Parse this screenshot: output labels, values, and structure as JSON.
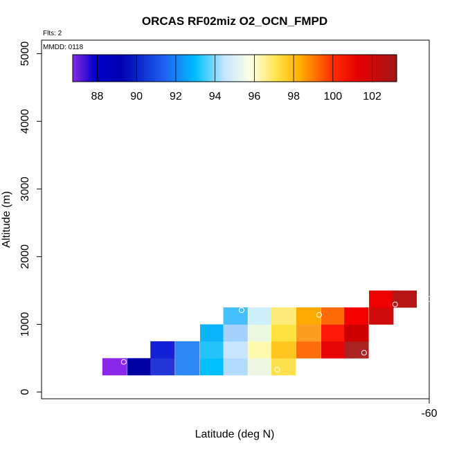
{
  "chart_data": {
    "type": "heatmap",
    "title": "ORCAS RF02miz O2_OCN_FMPD",
    "annotations": {
      "flights": "Flts: 2",
      "date": "MMDD: 0118"
    },
    "xlabel": "Latitude (deg N)",
    "ylabel": "Altitude (m)",
    "x_ticks": [
      "-60"
    ],
    "y_ticks": [
      0,
      1000,
      2000,
      3000,
      4000,
      5000
    ],
    "xlim": [
      -62.5,
      -60.0
    ],
    "ylim": [
      -100,
      5200
    ],
    "colorbar": {
      "min": 86.75,
      "max": 103.25,
      "tick_values": [
        88,
        90,
        92,
        94,
        96,
        98,
        100,
        102
      ],
      "tick_labels": [
        "88",
        "90",
        "92",
        "94",
        "96",
        "98",
        "100",
        "102"
      ]
    },
    "cell_size": {
      "lat": 0.156,
      "alt": 250
    },
    "cells": [
      {
        "lat": -62.03,
        "alt": 375,
        "value": 87.2,
        "color": "#8b27e8"
      },
      {
        "lat": -61.87,
        "alt": 375,
        "value": 88.5,
        "color": "#0000a5"
      },
      {
        "lat": -61.72,
        "alt": 375,
        "value": 90.0,
        "color": "#2436d8"
      },
      {
        "lat": -61.56,
        "alt": 375,
        "value": 91.4,
        "color": "#2d86f2"
      },
      {
        "lat": -61.4,
        "alt": 375,
        "value": 92.3,
        "color": "#00c0fe"
      },
      {
        "lat": -61.25,
        "alt": 375,
        "value": 93.6,
        "color": "#b4dafe"
      },
      {
        "lat": -61.09,
        "alt": 375,
        "value": 95.3,
        "color": "#edf7e3"
      },
      {
        "lat": -60.94,
        "alt": 375,
        "value": 97.8,
        "color": "#fde04e"
      },
      {
        "lat": -61.72,
        "alt": 625,
        "value": 89.2,
        "color": "#1221d5"
      },
      {
        "lat": -61.56,
        "alt": 625,
        "value": 91.4,
        "color": "#2d86f2"
      },
      {
        "lat": -61.4,
        "alt": 625,
        "value": 92.6,
        "color": "#24c4fa"
      },
      {
        "lat": -61.25,
        "alt": 625,
        "value": 94.5,
        "color": "#c8e6fe"
      },
      {
        "lat": -61.09,
        "alt": 625,
        "value": 96.6,
        "color": "#fefbb1"
      },
      {
        "lat": -60.94,
        "alt": 625,
        "value": 98.2,
        "color": "#fec51f"
      },
      {
        "lat": -60.78,
        "alt": 625,
        "value": 99.4,
        "color": "#fd6d0c"
      },
      {
        "lat": -60.62,
        "alt": 625,
        "value": 101.1,
        "color": "#e60505"
      },
      {
        "lat": -60.47,
        "alt": 625,
        "value": 102.6,
        "color": "#ab2222"
      },
      {
        "lat": -61.4,
        "alt": 875,
        "value": 92.2,
        "color": "#0cb4fb"
      },
      {
        "lat": -61.25,
        "alt": 875,
        "value": 93.7,
        "color": "#a4d1fc"
      },
      {
        "lat": -61.09,
        "alt": 875,
        "value": 95.6,
        "color": "#ebf8e1"
      },
      {
        "lat": -60.94,
        "alt": 875,
        "value": 97.4,
        "color": "#fde240"
      },
      {
        "lat": -60.78,
        "alt": 875,
        "value": 98.9,
        "color": "#fb9c23"
      },
      {
        "lat": -60.62,
        "alt": 875,
        "value": 100.6,
        "color": "#fe1a08"
      },
      {
        "lat": -60.47,
        "alt": 875,
        "value": 101.6,
        "color": "#cf0000"
      },
      {
        "lat": -61.25,
        "alt": 1125,
        "value": 92.8,
        "color": "#46c0fc"
      },
      {
        "lat": -61.09,
        "alt": 1125,
        "value": 94.8,
        "color": "#cdf0fc"
      },
      {
        "lat": -60.94,
        "alt": 1125,
        "value": 97.2,
        "color": "#fdea79"
      },
      {
        "lat": -60.78,
        "alt": 1125,
        "value": 98.6,
        "color": "#fdaa05"
      },
      {
        "lat": -60.62,
        "alt": 1125,
        "value": 99.5,
        "color": "#fd6a06"
      },
      {
        "lat": -60.47,
        "alt": 1125,
        "value": 101.0,
        "color": "#f40000"
      },
      {
        "lat": -60.31,
        "alt": 1125,
        "value": 101.8,
        "color": "#ce0a0a"
      },
      {
        "lat": -60.31,
        "alt": 1375,
        "value": 101.2,
        "color": "#ec0000"
      },
      {
        "lat": -60.16,
        "alt": 1375,
        "value": 102.5,
        "color": "#b41616"
      }
    ],
    "markers": [
      {
        "lat": -61.97,
        "alt": 445
      },
      {
        "lat": -61.21,
        "alt": 1210
      },
      {
        "lat": -60.98,
        "alt": 330
      },
      {
        "lat": -60.71,
        "alt": 1140
      },
      {
        "lat": -60.42,
        "alt": 580
      },
      {
        "lat": -60.22,
        "alt": 1295
      },
      {
        "lat": -60.0,
        "alt": 1375
      }
    ]
  }
}
